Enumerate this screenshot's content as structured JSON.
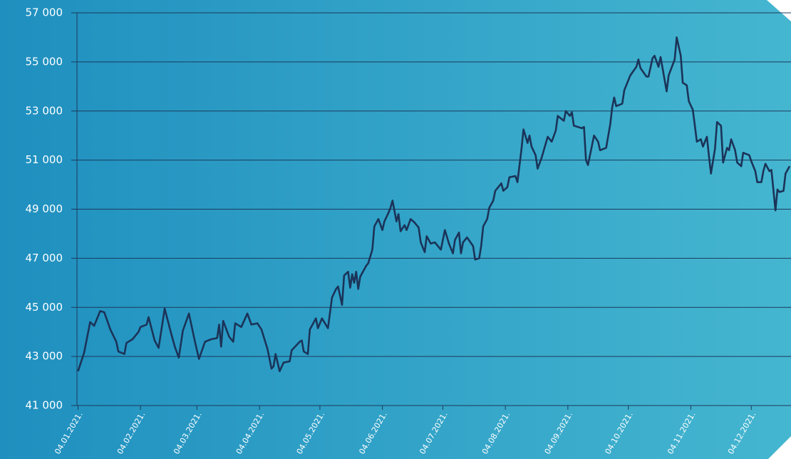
{
  "chart_data": {
    "type": "line",
    "color": "#1b3358",
    "grid": true,
    "xlim": [
      4,
      357
    ],
    "xticks": [
      {
        "value": 4,
        "label": "04.01.2021."
      },
      {
        "value": 35,
        "label": "04.02.2021."
      },
      {
        "value": 63,
        "label": "04.03.2021."
      },
      {
        "value": 94,
        "label": "04.04.2021."
      },
      {
        "value": 124,
        "label": "04.05.2021."
      },
      {
        "value": 155,
        "label": "04.06.2021."
      },
      {
        "value": 185,
        "label": "04.07.2021."
      },
      {
        "value": 216,
        "label": "04.08.2021."
      },
      {
        "value": 247,
        "label": "04.09.2021."
      },
      {
        "value": 277,
        "label": "04.10.2021."
      },
      {
        "value": 308,
        "label": "04.11.2021."
      },
      {
        "value": 338,
        "label": "04.12.2021."
      }
    ],
    "ylim": [
      41000,
      57000
    ],
    "yticks": [
      {
        "value": 41000,
        "label": "41 000"
      },
      {
        "value": 43000,
        "label": "43 000"
      },
      {
        "value": 45000,
        "label": "45 000"
      },
      {
        "value": 47000,
        "label": "47 000"
      },
      {
        "value": 49000,
        "label": "49 000"
      },
      {
        "value": 51000,
        "label": "51 000"
      },
      {
        "value": 53000,
        "label": "53 000"
      },
      {
        "value": 55000,
        "label": "55 000"
      },
      {
        "value": 57000,
        "label": "57 000"
      }
    ],
    "x": [
      4,
      7,
      10,
      12,
      15,
      17,
      20,
      23,
      24,
      27,
      28,
      31,
      34,
      35,
      38,
      39,
      42,
      44,
      47,
      50,
      52,
      54,
      56,
      59,
      62,
      64,
      67,
      70,
      73,
      74,
      75,
      76,
      79,
      81,
      82,
      85,
      88,
      90,
      93,
      95,
      98,
      100,
      101,
      102,
      104,
      106,
      109,
      110,
      114,
      115,
      116,
      118,
      119,
      122,
      123,
      125,
      128,
      130,
      132,
      133,
      135,
      136,
      138,
      139,
      140,
      141,
      142,
      143,
      144,
      147,
      148,
      150,
      151,
      153,
      155,
      156,
      158,
      159,
      160,
      162,
      163,
      164,
      166,
      167,
      169,
      171,
      173,
      174,
      176,
      177,
      179,
      181,
      184,
      186,
      188,
      190,
      191,
      193,
      194,
      195,
      197,
      200,
      201,
      203,
      204,
      205,
      207,
      208,
      210,
      211,
      212,
      214,
      215,
      217,
      218,
      221,
      222,
      224,
      225,
      227,
      228,
      229,
      231,
      232,
      234,
      237,
      239,
      241,
      242,
      245,
      246,
      248,
      249,
      250,
      254,
      255,
      256,
      257,
      260,
      262,
      263,
      266,
      268,
      269,
      270,
      271,
      274,
      275,
      278,
      281,
      282,
      283,
      286,
      287,
      289,
      290,
      292,
      293,
      296,
      297,
      300,
      301,
      303,
      304,
      306,
      307,
      309,
      310,
      311,
      313,
      314,
      316,
      317,
      318,
      320,
      321,
      323,
      324,
      326,
      327,
      328,
      330,
      331,
      333,
      334,
      337,
      338,
      340,
      341,
      343,
      344,
      345,
      347,
      348,
      350,
      351,
      352,
      354,
      355,
      357
    ],
    "values": [
      42400,
      43150,
      44400,
      44250,
      44850,
      44800,
      44100,
      43600,
      43200,
      43100,
      43550,
      43700,
      44000,
      44200,
      44300,
      44600,
      43650,
      43350,
      44950,
      44000,
      43400,
      42950,
      44050,
      44750,
      43600,
      42900,
      43600,
      43700,
      43750,
      44300,
      43400,
      44450,
      43800,
      43600,
      44350,
      44200,
      44750,
      44300,
      44350,
      44100,
      43300,
      42500,
      42600,
      43100,
      42400,
      42750,
      42800,
      43250,
      43600,
      43650,
      43200,
      43100,
      44100,
      44550,
      44150,
      44550,
      44150,
      45400,
      45750,
      45850,
      45100,
      46300,
      46450,
      45800,
      46350,
      46000,
      46450,
      45750,
      46250,
      46700,
      46800,
      47350,
      48300,
      48600,
      48150,
      48500,
      48850,
      49050,
      49350,
      48500,
      48800,
      48100,
      48350,
      48150,
      48600,
      48450,
      48250,
      47650,
      47250,
      47900,
      47600,
      47650,
      47350,
      48150,
      47600,
      47200,
      47750,
      48050,
      47200,
      47650,
      47850,
      47500,
      46950,
      47000,
      47500,
      48300,
      48600,
      49050,
      49350,
      49750,
      49850,
      50050,
      49750,
      49900,
      50300,
      50350,
      50100,
      51450,
      52250,
      51700,
      52000,
      51550,
      51200,
      50650,
      51100,
      51950,
      51750,
      52200,
      52800,
      52600,
      53000,
      52800,
      52950,
      52400,
      52300,
      52350,
      51000,
      50800,
      52000,
      51750,
      51400,
      51500,
      52450,
      53150,
      53550,
      53200,
      53300,
      53850,
      54450,
      54800,
      55100,
      54750,
      54400,
      54400,
      55150,
      55250,
      54800,
      55200,
      53800,
      54450,
      55100,
      56000,
      55250,
      54150,
      54050,
      53400,
      53050,
      52400,
      51750,
      51850,
      51550,
      51950,
      51150,
      50450,
      51450,
      52550,
      52400,
      50900,
      51500,
      51400,
      51850,
      51400,
      50900,
      50750,
      51300,
      51200,
      50950,
      50550,
      50100,
      50100,
      50550,
      50850,
      50550,
      50600,
      48950,
      49800,
      49700,
      49750,
      50450,
      50750
    ]
  }
}
